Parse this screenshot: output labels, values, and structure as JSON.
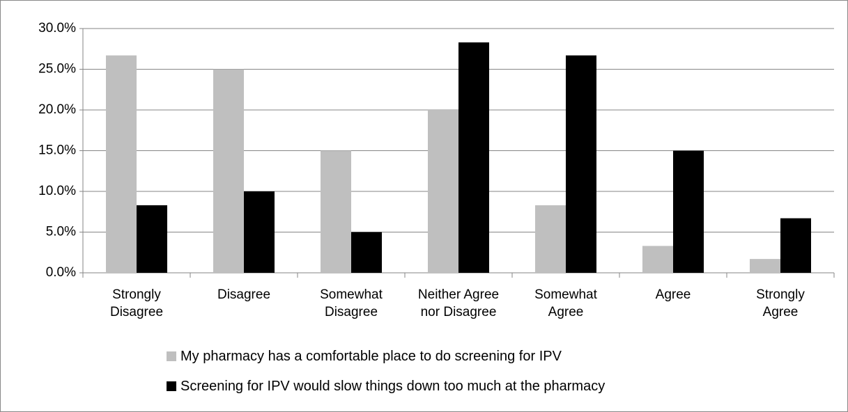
{
  "chart_data": {
    "type": "bar",
    "categories": [
      "Strongly Disagree",
      "Disagree",
      "Somewhat Disagree",
      "Neither Agree nor Disagree",
      "Somewhat Agree",
      "Agree",
      "Strongly Agree"
    ],
    "series": [
      {
        "name": "My pharmacy has a comfortable place to do screening for IPV",
        "color": "#bfbfbf",
        "values": [
          26.7,
          25.0,
          15.0,
          20.0,
          8.3,
          3.3,
          1.7
        ]
      },
      {
        "name": "Screening for IPV would slow things down too much at the pharmacy",
        "color": "#000000",
        "values": [
          8.3,
          10.0,
          5.0,
          28.3,
          26.7,
          15.0,
          6.7
        ]
      }
    ],
    "ylim": [
      0,
      30
    ],
    "yticks": [
      {
        "value": 0,
        "label": "0.0%"
      },
      {
        "value": 5,
        "label": "5.0%"
      },
      {
        "value": 10,
        "label": "10.0%"
      },
      {
        "value": 15,
        "label": "15.0%"
      },
      {
        "value": 20,
        "label": "20.0%"
      },
      {
        "value": 25,
        "label": "25.0%"
      },
      {
        "value": 30,
        "label": "30.0%"
      }
    ],
    "grid": true,
    "legend": "bottom"
  }
}
